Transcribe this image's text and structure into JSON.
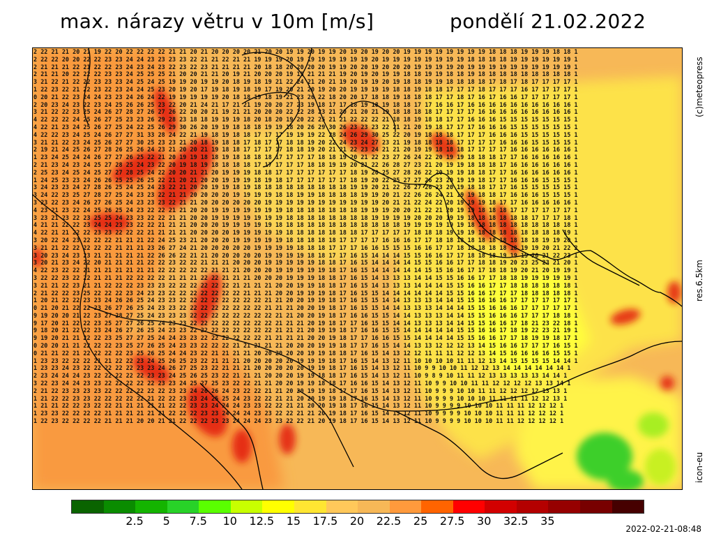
{
  "title": {
    "left": "max. nárazy větru v 10m [m/s]",
    "right": "pondělí 21.02.2022"
  },
  "side_labels": {
    "copyright": "(c)meteopress",
    "resolution": "res.6.5km",
    "model": "icon-eu"
  },
  "timestamp": "2022-02-21-08:48",
  "legend": {
    "colors": [
      "#0a6400",
      "#0a8c00",
      "#14b400",
      "#28d228",
      "#5aff00",
      "#c8ff00",
      "#ffff00",
      "#ffe632",
      "#ffc85a",
      "#f7b857",
      "#ff9a3c",
      "#ff6400",
      "#ff0000",
      "#d20000",
      "#b40000",
      "#960000",
      "#780000",
      "#460000"
    ],
    "ticks": [
      "2.5",
      "5",
      "7.5",
      "10",
      "12.5",
      "15",
      "17.5",
      "20",
      "22.5",
      "25",
      "27.5",
      "30",
      "32.5",
      "35"
    ]
  },
  "grid_rows": [
    "2 22 21 21 20 21 19 22 20 22 22 22 22 21 21 20 21 20 20 20 20 21 20 20 19 19 20 19 19 20 19 20 19 20 20 19 19 19 19 19 19 19 19 18 18 18 19 19 19 18 18 1",
    "2 22 22 20 20 22 22 23 23 24 24 23 23 23 23 22 21 21 22 21 21 19 19 19 20 19 19 19 19 19 19 19 20 19 19 19 19 19 19 19 19 18 18 18 18 19 19 19 19 19 19 1",
    "2 21 21 21 22 21 22 22 23 24 23 24 23 22 23 22 23 21 21 21 21 20 18 18 20 20 20 20 19 19 20 20 19 20 20 20 19 19 19 19 20 19 19 19 19 19 19 19 19 19 19 1",
    "2 21 21 20 22 22 22 23 23 24 25 25 25 21 20 20 21 21 20 19 21 20 20 20 19 19 21 21 21 19 20 19 20 19 19 18 18 19 19 18 18 19 18 18 18 18 18 18 18 18 18 1",
    "3 21 22 21 22 22 23 23 23 24 25 24 25 19 19 20 19 19 20 18 19 18 19 21 22 24 21 20 21 19 20 19 19 20 19 18 18 19 19 18 18 18 18 17 18 17 18 17 17 17 17 1",
    "1 22 23 22 21 22 23 22 23 24 24 25 23 20 19 20 17 19 18 19 18 19 17 19 20 21 20 19 20 20 19 19 19 19 18 18 19 18 18 17 17 17 18 17 17 17 16 17 17 17 17 1",
    "0 20 21 22 23 24 24 23 23 24 26 24 22 19 19 19 19 19 20 18 18 19 18 19 21 23 26 22 18 20 20 17 18 18 19 18 18 18 17 17 18 17 16 17 16 16 17 17 17 17 17 1",
    "2 20 23 24 23 22 23 24 25 26 26 25 23 22 20 21 24 21 17 21 21 19 20 20 27 23 19 18 17 17 18 19 18 19 18 18 17 17 16 16 17 16 16 16 16 16 16 16 16 16 16 1",
    "3 21 22 22 23 25 24 26 27 28 27 26 27 26 22 20 20 21 19 21 21 20 20 20 22 22 28 23 21 20 21 20 21 19 18 18 18 18 17 17 17 17 16 16 16 16 16 16 16 16 16 1",
    "4 22 22 22 24 25 26 27 25 23 23 26 29 28 23 18 18 19 19 19 18 20 18 20 19 20 22 25 21 21 22 22 22 21 18 18 19 18 18 17 17 16 16 16 15 15 15 15 15 15 15 1",
    "4 22 21 23 24 25 26 27 25 24 22 25 26 29 30 26 20 19 19 18 18 18 19 19 18 20 26 29 30 26 23 23 23 22 21 21 20 19 18 17 17 17 16 16 16 15 15 15 15 15 15 1",
    "4 22 22 23 24 25 24 26 27 27 31 33 28 24 22 21 19 18 19 18 18 17 17 17 19 19 19 22 28 24 26 29 30 25 22 20 19 18 18 18 17 17 17 16 16 16 15 15 15 15 15 1",
    "3 21 21 22 23 24 25 26 27 27 30 25 23 23 21 20 18 19 18 18 17 18 17 17 18 18 19 20 22 24 23 24 27 23 21 19 18 18 18 18 17 17 17 17 16 16 16 15 15 15 15 1",
    "2 19 21 24 25 26 27 28 26 25 26 24 23 21 20 20 21 19 18 18 17 17 17 17 18 18 19 20 21 21 22 23 24 21 21 20 19 19 18 18 18 17 17 17 17 16 16 16 16 16 16 1",
    "1 23 24 25 24 24 26 27 27 26 25 22 21 20 19 19 18 18 19 18 18 18 18 17 17 17 17 18 18 19 20 21 22 23 27 26 24 22 20 19 19 18 18 18 17 17 16 16 16 16 16 1",
    "2 21 23 24 23 24 25 27 28 25 24 23 22 20 19 18 19 18 18 18 18 17 17 17 17 17 18 18 19 19 20 21 22 26 28 27 23 21 20 19 19 18 18 18 17 16 16 16 16 16 16 1",
    "2 25 23 24 25 24 25 27 27 28 25 24 22 20 20 21 21 20 19 19 19 18 18 17 17 17 17 17 17 17 18 19 20 25 27 28 26 22 20 19 19 18 18 17 17 16 16 16 16 16 16 1",
    "1 24 25 23 23 24 26 26 25 25 26 25 22 21 20 21 20 20 19 19 19 18 19 18 17 17 17 17 17 17 18 19 20 22 25 27 27 26 23 20 19 19 18 17 17 16 16 16 15 15 15 1",
    "3 24 23 23 24 27 28 26 25 24 25 24 23 22 21 20 20 19 19 18 19 18 18 18 18 18 18 18 18 18 19 19 20 21 22 26 27 26 23 20 19 18 18 17 17 16 15 15 15 15 15 1",
    "3 24 22 23 25 27 28 27 25 24 23 23 22 21 21 20 20 20 20 19 19 19 19 18 18 19 19 18 18 18 18 19 19 20 21 22 26 26 24 21 19 19 18 18 17 16 16 16 15 15 15 1",
    "3 23 22 23 24 26 27 26 25 24 23 23 23 22 21 21 20 20 20 20 20 20 19 19 19 19 19 19 19 19 19 19 19 20 21 21 22 24 22 20 19 19 19 18 17 17 16 16 16 16 16 1",
    "4 23 21 23 22 24 25 26 25 24 23 22 22 21 21 20 20 19 19 19 19 19 19 19 18 18 18 18 18 18 18 19 19 19 20 20 21 22 21 20 19 19 18 18 18 17 17 17 17 17 17 1",
    "3 23 21 23 22 23 25 25 24 23 23 22 22 21 21 20 20 19 19 19 19 19 19 19 18 18 18 18 18 18 18 18 19 19 19 19 20 20 20 19 19 18 18 18 18 18 18 17 17 17 18 1",
    "4 21 21 22 22 23 24 24 23 23 22 22 21 21 21 20 20 20 19 19 19 19 19 18 18 18 18 18 18 18 18 18 18 18 18 19 19 19 19 19 19 18 18 18 18 18 18 18 18 18 18 1",
    "4 22 21 21 22 22 23 23 22 22 22 21 21 21 21 20 20 20 20 19 19 19 19 19 18 18 18 18 18 18 18 17 17 17 17 17 18 18 18 19 19 19 18 18 18 18 18 18 18 18 19 1",
    "3 20 22 24 23 22 22 22 21 21 21 22 24 25 23 21 20 20 20 19 19 19 19 19 18 18 18 18 18 17 17 17 17 16 16 16 17 17 18 18 18 18 18 18 18 18 18 18 19 19 20 1",
    "3 21 21 22 22 22 22 22 21 21 21 23 26 27 24 21 20 20 20 20 20 19 19 19 19 18 18 18 17 17 17 16 16 15 15 15 16 16 17 17 18 18 18 18 18 18 19 19 20 21 22 2",
    "3 20 23 24 23 23 21 21 21 21 21 22 26 26 22 21 21 20 20 20 20 20 19 19 19 19 18 18 17 17 16 15 14 14 14 15 15 16 16 17 17 18 18 18 19 19 19 20 21 22 23 1",
    "3 20 21 23 24 22 20 21 21 21 21 22 22 23 22 22 21 21 21 20 20 20 19 19 19 19 19 18 18 17 16 15 14 14 14 14 15 15 16 16 17 17 18 18 19 20 23 25 23 21 20 1",
    "4 22 23 22 22 21 21 21 21 21 21 21 22 22 22 22 22 21 21 21 20 20 20 19 19 19 19 19 18 17 16 15 14 14 14 14 14 15 15 16 16 17 17 18 18 19 20 21 20 19 19 1",
    "3 22 22 23 22 22 21 21 21 22 22 22 22 21 21 21 22 22 21 21 21 20 20 20 19 19 19 18 18 17 16 15 14 13 13 13 14 14 15 15 16 16 17 17 18 18 19 19 19 19 19 1",
    "3 21 21 22 23 21 21 22 22 22 23 23 23 22 22 22 22 22 22 21 21 21 21 20 20 19 19 18 18 17 16 15 14 13 13 13 14 14 14 15 15 16 16 17 17 18 18 18 18 18 18 1",
    "2 21 22 22 23 25 22 22 22 23 24 23 23 22 22 22 22 22 22 22 21 21 21 20 20 19 19 19 18 17 16 15 15 14 14 14 14 14 14 15 15 16 16 17 17 17 18 18 18 18 18 1",
    "1 20 21 22 22 23 23 24 26 26 25 24 23 23 22 22 22 22 22 22 22 22 21 21 20 20 19 19 18 17 16 15 15 14 14 13 13 13 14 14 15 15 16 16 16 17 17 17 17 17 17 1",
    "0 21 20 21 22 22 23 26 27 26 25 24 23 23 22 22 22 22 22 22 22 22 21 21 21 20 20 19 18 17 16 15 15 14 14 13 13 13 14 14 14 15 15 16 16 16 17 17 17 17 17 1",
    "9 19 20 20 21 22 23 27 28 27 25 24 23 23 23 22 22 22 22 22 22 22 22 21 21 20 20 19 18 17 16 16 15 15 14 14 13 13 13 14 14 15 15 16 16 16 17 17 17 18 18 1",
    "9 17 20 21 22 22 23 25 27 27 26 25 24 23 23 22 22 22 22 22 22 22 22 21 21 21 20 19 18 17 17 16 15 15 14 14 13 13 13 14 14 15 15 16 16 17 18 21 23 22 18 1",
    "9 18 20 21 22 22 23 24 26 27 26 25 24 23 23 22 22 22 22 22 22 22 22 21 21 21 20 19 19 18 17 16 16 15 15 14 14 14 14 14 15 15 16 16 17 18 19 22 23 21 19 1",
    "9 19 20 21 21 22 22 23 25 27 27 25 24 24 23 23 22 22 22 22 22 22 21 21 21 21 20 20 19 18 17 17 16 16 15 15 14 14 14 14 15 15 16 16 17 17 18 19 19 18 17 1",
    "0 20 20 21 21 22 22 22 23 25 27 26 25 24 23 23 22 22 22 21 21 21 21 21 20 20 20 19 19 18 17 17 16 15 14 14 13 13 12 12 12 13 14 15 16 16 17 17 17 16 15 1",
    "0 21 21 22 21 22 22 22 22 23 25 26 25 24 24 23 22 21 21 21 21 20 20 20 20 20 19 19 18 18 17 16 15 14 13 12 12 11 11 11 12 12 13 14 15 16 16 16 16 15 15 1",
    "1 23 23 22 22 22 21 21 22 22 23 24 25 26 25 23 22 21 21 21 20 20 20 20 20 19 19 19 18 17 16 15 14 13 12 11 10 10 10 10 11 11 12 13 14 15 15 15 15 14 14 1",
    "1 23 23 24 23 22 22 22 22 22 23 23 24 26 27 25 23 22 21 21 21 20 20 20 20 20 19 19 18 17 16 15 14 13 12 11 10 9 9 10 10 11 12 12 13 14 14 14 14 14 14 1",
    "2 23 24 24 24 23 22 22 22 22 22 23 23 24 25 26 25 23 22 21 21 21 20 20 20 19 19 18 18 17 16 15 14 13 12 11 10 9 8 9 10 11 11 12 13 13 13 13 13 14 14 1",
    "3 22 23 24 24 23 23 22 22 22 22 22 23 23 24 25 27 25 23 22 22 21 21 20 20 19 19 18 18 17 16 16 15 14 13 12 11 10 9 9 10 10 11 11 12 12 12 12 13 13 14 1",
    "2 21 22 23 23 23 23 22 22 22 22 22 22 23 23 24 26 26 24 23 22 22 21 21 20 20 19 19 18 17 17 16 15 14 13 12 11 10 9 9 9 10 10 11 11 12 12 12 12 13 13 1",
    "1 21 22 22 23 23 22 22 22 22 22 21 22 22 23 23 24 25 25 24 23 22 22 21 21 20 20 19 19 18 17 16 15 14 13 12 11 10 9 9 9 10 10 10 11 11 11 11 12 12 13 1",
    "1 21 21 22 22 23 22 22 21 21 21 21 21 22 22 23 23 24 24 24 23 23 22 22 21 21 20 20 19 18 17 16 15 14 13 12 11 10 9 9 9 9 10 10 10 11 11 11 12 12 12 1",
    "1 23 23 22 22 22 22 21 21 21 21 21 21 22 22 22 23 23 24 24 24 23 23 22 22 21 21 20 19 18 17 16 15 14 13 12 11 10 9 9 9 9 10 10 10 11 11 11 12 12 12 1",
    "1 22 23 22 22 22 22 21 21 21 20 20 21 21 22 22 22 23 23 24 24 24 23 23 22 22 21 20 19 18 17 16 15 14 13 12 11 10 9 9 9 9 10 10 10 11 11 12 12 12 12 1"
  ]
}
